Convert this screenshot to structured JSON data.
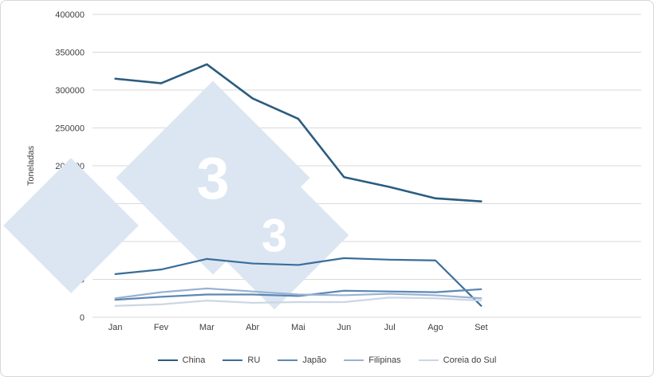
{
  "page": {
    "background": "#ffffff",
    "border_color": "#d7d7d7",
    "axis_text_color": "#404040",
    "gridline_color": "#d9d9d9"
  },
  "chart_data": {
    "type": "line",
    "title": "",
    "xlabel": "",
    "ylabel": "Toneladas",
    "categories": [
      "Jan",
      "Fev",
      "Mar",
      "Abr",
      "Mai",
      "Jun",
      "Jul",
      "Ago",
      "Set"
    ],
    "x_slots": 12,
    "ylim": [
      0,
      400000
    ],
    "ytick_step": 50000,
    "ytick_labels": [
      "0",
      "50000",
      "100000",
      "150000",
      "200000",
      "250000",
      "300000",
      "350000",
      "400000"
    ],
    "grid": true,
    "legend_position": "bottom",
    "series": [
      {
        "name": "China",
        "color": "#2b5c7f",
        "width": 2.6,
        "values": [
          315000,
          309000,
          334000,
          289000,
          262000,
          185000,
          172000,
          157000,
          153000
        ]
      },
      {
        "name": "RU",
        "color": "#3a6d99",
        "width": 2.2,
        "values": [
          57000,
          63000,
          77000,
          71000,
          69000,
          78000,
          76000,
          75000,
          15000
        ]
      },
      {
        "name": "Japão",
        "color": "#5b88b4",
        "width": 2.2,
        "values": [
          23000,
          27000,
          30000,
          30000,
          28000,
          35000,
          34000,
          33000,
          37000
        ]
      },
      {
        "name": "Filipinas",
        "color": "#9ab2d2",
        "width": 2.2,
        "values": [
          25000,
          33000,
          38000,
          34000,
          30000,
          29000,
          31000,
          29000,
          25000
        ]
      },
      {
        "name": "Coreia do Sul",
        "color": "#cbd6e4",
        "width": 2.2,
        "values": [
          15000,
          17000,
          22000,
          19000,
          20000,
          20000,
          26000,
          25000,
          22000
        ]
      }
    ],
    "watermark": {
      "glyph": "3",
      "diamond_color": "#dce6f2",
      "glyph_color": "#ffffff"
    }
  }
}
